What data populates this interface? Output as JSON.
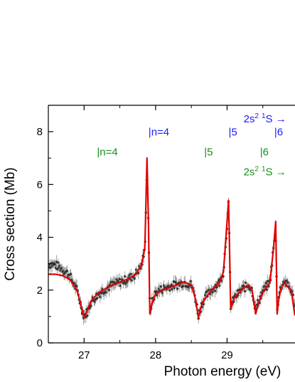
{
  "chart_data": {
    "type": "line",
    "title": "",
    "xlabel": "Photon energy (eV)",
    "ylabel": "Cross section (Mb)",
    "xlim": [
      26.5,
      29.95
    ],
    "ylim": [
      0,
      9
    ],
    "xticks": [
      27,
      28,
      29
    ],
    "yticks": [
      0,
      2,
      4,
      6,
      8
    ],
    "grid": false,
    "legend": "none",
    "colors": {
      "fit": "#e00000",
      "data": "#333333",
      "series_blue": "#1a1aff",
      "series_green": "#1a8c1a"
    },
    "series": [
      {
        "role": "measured",
        "x": [
          26.5,
          26.6,
          26.7,
          26.8,
          26.9,
          26.95,
          27.0,
          27.05,
          27.1,
          27.2,
          27.3,
          27.4,
          27.5,
          27.6,
          27.7,
          27.8,
          27.85,
          27.88,
          27.9,
          27.92,
          27.95,
          28.0,
          28.1,
          28.2,
          28.3,
          28.4,
          28.5,
          28.55,
          28.6,
          28.65,
          28.7,
          28.8,
          28.9,
          28.95,
          29.0,
          29.02,
          29.03,
          29.05,
          29.08,
          29.1,
          29.2,
          29.3,
          29.35,
          29.4,
          29.45,
          29.5,
          29.6,
          29.65,
          29.68,
          29.7,
          29.72,
          29.75,
          29.8,
          29.9,
          29.95
        ],
        "y": [
          3.0,
          2.95,
          2.8,
          2.55,
          2.0,
          1.5,
          1.0,
          1.2,
          1.55,
          1.85,
          2.05,
          2.2,
          2.3,
          2.4,
          2.55,
          2.9,
          3.5,
          6.6,
          4.4,
          1.2,
          1.55,
          1.9,
          2.05,
          2.15,
          2.2,
          2.3,
          2.2,
          1.8,
          1.05,
          1.5,
          1.75,
          2.05,
          2.3,
          2.7,
          4.5,
          5.2,
          4.1,
          1.4,
          1.55,
          1.7,
          2.0,
          2.2,
          2.0,
          1.25,
          1.65,
          1.95,
          2.3,
          3.6,
          4.2,
          1.3,
          1.7,
          2.1,
          2.35,
          2.0,
          1.4
        ]
      },
      {
        "role": "fit",
        "x": [
          26.5,
          26.6,
          26.7,
          26.8,
          26.9,
          26.95,
          27.0,
          27.05,
          27.1,
          27.2,
          27.3,
          27.4,
          27.5,
          27.6,
          27.7,
          27.8,
          27.85,
          27.88,
          27.9,
          27.92,
          27.95,
          28.0,
          28.1,
          28.2,
          28.3,
          28.4,
          28.5,
          28.55,
          28.6,
          28.65,
          28.7,
          28.8,
          28.9,
          28.95,
          29.0,
          29.02,
          29.03,
          29.05,
          29.08,
          29.1,
          29.2,
          29.3,
          29.35,
          29.4,
          29.45,
          29.5,
          29.6,
          29.65,
          29.68,
          29.7,
          29.72,
          29.75,
          29.8,
          29.9,
          29.95
        ],
        "y": [
          2.6,
          2.6,
          2.55,
          2.4,
          2.0,
          1.5,
          0.95,
          1.25,
          1.6,
          1.9,
          2.05,
          2.2,
          2.3,
          2.4,
          2.55,
          2.9,
          3.6,
          7.0,
          4.6,
          1.1,
          1.5,
          1.85,
          2.0,
          2.1,
          2.2,
          2.3,
          2.2,
          1.75,
          0.95,
          1.5,
          1.7,
          2.05,
          2.3,
          2.7,
          4.6,
          5.4,
          4.2,
          1.3,
          1.5,
          1.7,
          2.0,
          2.2,
          2.0,
          1.1,
          1.6,
          1.9,
          2.3,
          3.6,
          4.6,
          1.1,
          1.6,
          2.0,
          2.3,
          1.95,
          1.0
        ]
      }
    ],
    "annotations": [
      {
        "text": "|n=4",
        "x": 27.9,
        "y": 7.85,
        "series": "blue"
      },
      {
        "text": "|5",
        "x": 29.02,
        "y": 7.85,
        "series": "blue"
      },
      {
        "text": "|6",
        "x": 29.66,
        "y": 7.85,
        "series": "blue"
      },
      {
        "text": "|n=4",
        "x": 27.18,
        "y": 7.1,
        "series": "green"
      },
      {
        "text": "|5",
        "x": 28.68,
        "y": 7.1,
        "series": "green"
      },
      {
        "text": "|6",
        "x": 29.46,
        "y": 7.1,
        "series": "green"
      }
    ],
    "series_labels": {
      "blue": {
        "base": "2s",
        "sup1": "2",
        "sup2": "1",
        "tail": "S →",
        "x": 29.23,
        "y": 8.35
      },
      "green": {
        "base": "2s",
        "sup1": "2",
        "sup2": "1",
        "tail": "S →",
        "x": 29.23,
        "y": 6.35
      }
    }
  }
}
